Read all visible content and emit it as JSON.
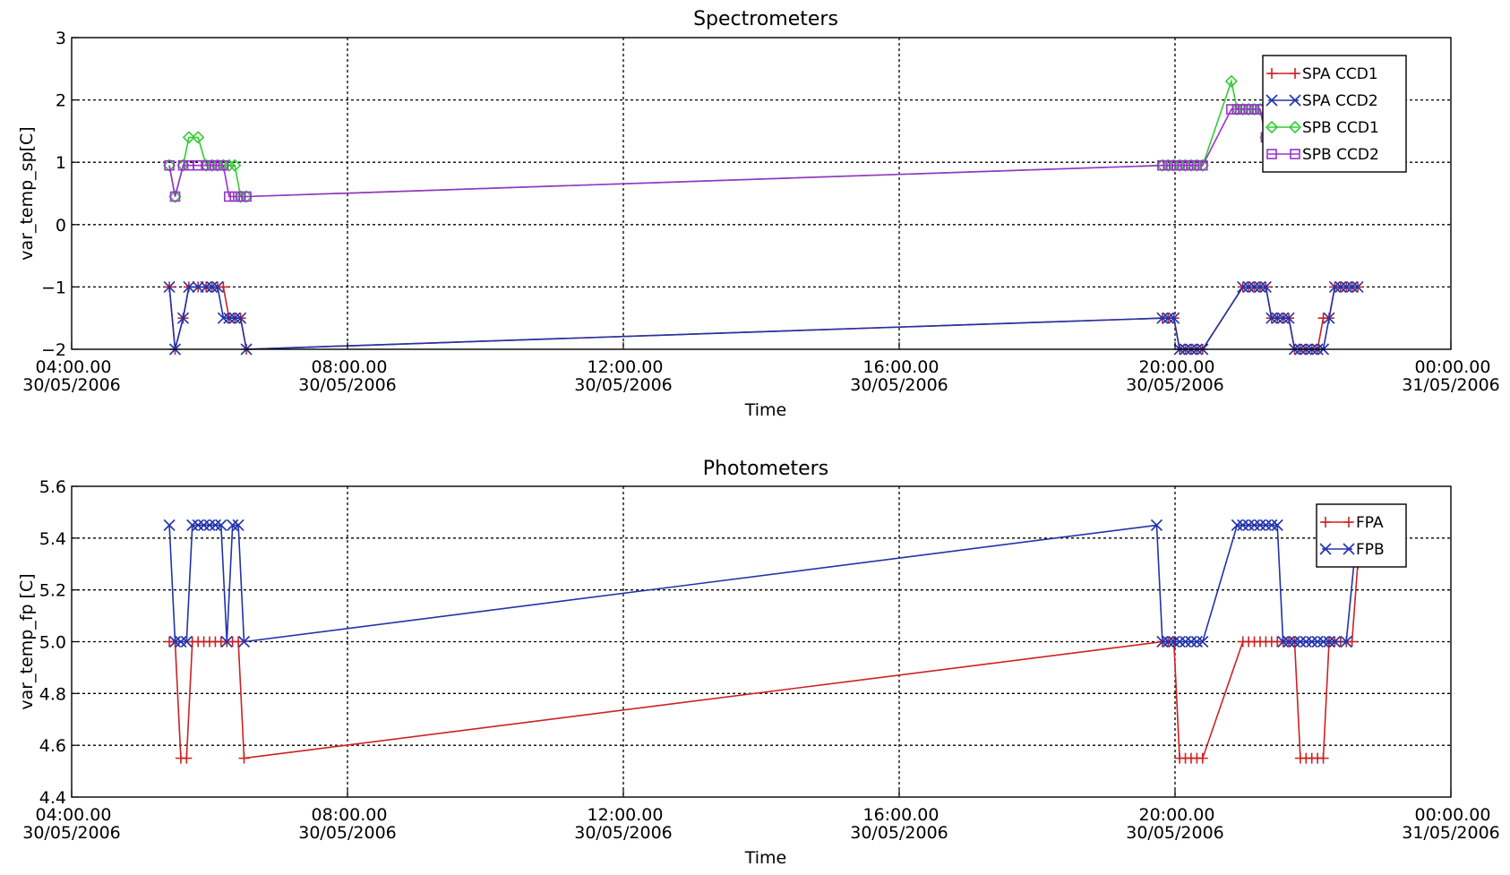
{
  "chart_data": [
    {
      "type": "line",
      "title": "Spectrometers",
      "xlabel": "Time",
      "ylabel": "var_temp_sp[C]",
      "xlim": [
        "2006-05-30 04:00",
        "2006-05-31 00:00"
      ],
      "ylim": [
        -2,
        3
      ],
      "yticks": [
        3,
        2,
        1,
        0,
        -1,
        -2
      ],
      "ytick_labels": [
        "3",
        "2",
        "1",
        "0",
        "−1",
        "−2"
      ],
      "xticks": [
        "2006-05-30 04:00",
        "2006-05-30 08:00",
        "2006-05-30 12:00",
        "2006-05-30 16:00",
        "2006-05-30 20:00",
        "2006-05-31 00:00"
      ],
      "xtick_labels": [
        [
          "04:00.00",
          "30/05/2006"
        ],
        [
          "08:00.00",
          "30/05/2006"
        ],
        [
          "12:00.00",
          "30/05/2006"
        ],
        [
          "16:00.00",
          "30/05/2006"
        ],
        [
          "20:00.00",
          "30/05/2006"
        ],
        [
          "00:00.00",
          "31/05/2006"
        ]
      ],
      "grid": true,
      "legend_position": "top-right",
      "series": [
        {
          "name": "SPA CCD1",
          "color": "#cc2222",
          "marker": "plus",
          "x": [
            "2006-05-30 05:25",
            "2006-05-30 05:30",
            "2006-05-30 05:37",
            "2006-05-30 05:42",
            "2006-05-30 05:50",
            "2006-05-30 05:57",
            "2006-05-30 06:02",
            "2006-05-30 06:07",
            "2006-05-30 06:12",
            "2006-05-30 06:17",
            "2006-05-30 06:22",
            "2006-05-30 06:27",
            "2006-05-30 06:32",
            "2006-05-30 19:49",
            "2006-05-30 19:54",
            "2006-05-30 19:59",
            "2006-05-30 20:04",
            "2006-05-30 20:09",
            "2006-05-30 20:14",
            "2006-05-30 20:19",
            "2006-05-30 20:24",
            "2006-05-30 20:59",
            "2006-05-30 21:04",
            "2006-05-30 21:09",
            "2006-05-30 21:14",
            "2006-05-30 21:19",
            "2006-05-30 21:24",
            "2006-05-30 21:29",
            "2006-05-30 21:34",
            "2006-05-30 21:39",
            "2006-05-30 21:44",
            "2006-05-30 21:49",
            "2006-05-30 21:54",
            "2006-05-30 21:59",
            "2006-05-30 22:04",
            "2006-05-30 22:09",
            "2006-05-30 22:14",
            "2006-05-30 22:19",
            "2006-05-30 22:24",
            "2006-05-30 22:29",
            "2006-05-30 22:34",
            "2006-05-30 22:39"
          ],
          "y": [
            -1.0,
            -2.0,
            -1.5,
            -1.0,
            -1.0,
            -1.0,
            -1.0,
            -1.0,
            -1.0,
            -1.5,
            -1.5,
            -1.5,
            -2.0,
            -1.5,
            -1.5,
            -1.5,
            -2.0,
            -2.0,
            -2.0,
            -2.0,
            -2.0,
            -1.0,
            -1.0,
            -1.0,
            -1.0,
            -1.0,
            -1.5,
            -1.5,
            -1.5,
            -1.5,
            -2.0,
            -2.0,
            -2.0,
            -2.0,
            -2.0,
            -1.5,
            -1.5,
            -1.0,
            -1.0,
            -1.0,
            -1.0,
            -1.0
          ]
        },
        {
          "name": "SPA CCD2",
          "color": "#2233aa",
          "marker": "x",
          "x": [
            "2006-05-30 05:25",
            "2006-05-30 05:30",
            "2006-05-30 05:37",
            "2006-05-30 05:42",
            "2006-05-30 05:50",
            "2006-05-30 05:57",
            "2006-05-30 06:02",
            "2006-05-30 06:07",
            "2006-05-30 06:12",
            "2006-05-30 06:17",
            "2006-05-30 06:22",
            "2006-05-30 06:27",
            "2006-05-30 06:32",
            "2006-05-30 19:49",
            "2006-05-30 19:54",
            "2006-05-30 19:59",
            "2006-05-30 20:04",
            "2006-05-30 20:09",
            "2006-05-30 20:14",
            "2006-05-30 20:19",
            "2006-05-30 20:24",
            "2006-05-30 20:59",
            "2006-05-30 21:04",
            "2006-05-30 21:09",
            "2006-05-30 21:14",
            "2006-05-30 21:19",
            "2006-05-30 21:24",
            "2006-05-30 21:29",
            "2006-05-30 21:34",
            "2006-05-30 21:39",
            "2006-05-30 21:44",
            "2006-05-30 21:49",
            "2006-05-30 21:54",
            "2006-05-30 21:59",
            "2006-05-30 22:04",
            "2006-05-30 22:09",
            "2006-05-30 22:14",
            "2006-05-30 22:19",
            "2006-05-30 22:24",
            "2006-05-30 22:29",
            "2006-05-30 22:34",
            "2006-05-30 22:39"
          ],
          "y": [
            -1.0,
            -2.0,
            -1.5,
            -1.0,
            -1.0,
            -1.0,
            -1.0,
            -1.0,
            -1.5,
            -1.5,
            -1.5,
            -1.5,
            -2.0,
            -1.5,
            -1.5,
            -1.5,
            -2.0,
            -2.0,
            -2.0,
            -2.0,
            -2.0,
            -1.0,
            -1.0,
            -1.0,
            -1.0,
            -1.0,
            -1.5,
            -1.5,
            -1.5,
            -1.5,
            -2.0,
            -2.0,
            -2.0,
            -2.0,
            -2.0,
            -2.0,
            -1.5,
            -1.0,
            -1.0,
            -1.0,
            -1.0,
            -1.0
          ]
        },
        {
          "name": "SPB CCD1",
          "color": "#33cc33",
          "marker": "diamond",
          "x": [
            "2006-05-30 05:25",
            "2006-05-30 05:30",
            "2006-05-30 05:37",
            "2006-05-30 05:42",
            "2006-05-30 05:50",
            "2006-05-30 05:57",
            "2006-05-30 06:02",
            "2006-05-30 06:07",
            "2006-05-30 06:12",
            "2006-05-30 06:17",
            "2006-05-30 06:22",
            "2006-05-30 06:27",
            "2006-05-30 06:32",
            "2006-05-30 19:49",
            "2006-05-30 19:54",
            "2006-05-30 19:59",
            "2006-05-30 20:04",
            "2006-05-30 20:09",
            "2006-05-30 20:14",
            "2006-05-30 20:19",
            "2006-05-30 20:24",
            "2006-05-30 20:49",
            "2006-05-30 20:54",
            "2006-05-30 20:59",
            "2006-05-30 21:04",
            "2006-05-30 21:09",
            "2006-05-30 21:14",
            "2006-05-30 21:19",
            "2006-05-30 21:24"
          ],
          "y": [
            0.95,
            0.45,
            0.95,
            1.4,
            1.4,
            0.95,
            0.95,
            0.95,
            0.95,
            0.95,
            0.95,
            0.45,
            0.45,
            0.95,
            0.95,
            0.95,
            0.95,
            0.95,
            0.95,
            0.95,
            0.95,
            2.3,
            1.85,
            1.85,
            1.85,
            1.85,
            1.85,
            1.4,
            0.95
          ]
        },
        {
          "name": "SPB CCD2",
          "color": "#9933cc",
          "marker": "square",
          "x": [
            "2006-05-30 05:25",
            "2006-05-30 05:30",
            "2006-05-30 05:37",
            "2006-05-30 05:42",
            "2006-05-30 05:50",
            "2006-05-30 05:57",
            "2006-05-30 06:02",
            "2006-05-30 06:07",
            "2006-05-30 06:12",
            "2006-05-30 06:17",
            "2006-05-30 06:22",
            "2006-05-30 06:27",
            "2006-05-30 06:32",
            "2006-05-30 19:49",
            "2006-05-30 19:54",
            "2006-05-30 19:59",
            "2006-05-30 20:04",
            "2006-05-30 20:09",
            "2006-05-30 20:14",
            "2006-05-30 20:19",
            "2006-05-30 20:24",
            "2006-05-30 20:49",
            "2006-05-30 20:54",
            "2006-05-30 20:59",
            "2006-05-30 21:04",
            "2006-05-30 21:09",
            "2006-05-30 21:14",
            "2006-05-30 21:19",
            "2006-05-30 21:24"
          ],
          "y": [
            0.95,
            0.45,
            0.95,
            0.95,
            0.95,
            0.95,
            0.95,
            0.95,
            0.95,
            0.45,
            0.45,
            0.45,
            0.45,
            0.95,
            0.95,
            0.95,
            0.95,
            0.95,
            0.95,
            0.95,
            0.95,
            1.85,
            1.85,
            1.85,
            1.85,
            1.85,
            1.85,
            1.4,
            0.95
          ]
        }
      ]
    },
    {
      "type": "line",
      "title": "Photometers",
      "xlabel": "Time",
      "ylabel": "var_temp_fp [C]",
      "xlim": [
        "2006-05-30 04:00",
        "2006-05-31 00:00"
      ],
      "ylim": [
        4.4,
        5.6
      ],
      "yticks": [
        5.6,
        5.4,
        5.2,
        5.0,
        4.8,
        4.6,
        4.4
      ],
      "ytick_labels": [
        "5.6",
        "5.4",
        "5.2",
        "5.0",
        "4.8",
        "4.6",
        "4.4"
      ],
      "xticks": [
        "2006-05-30 04:00",
        "2006-05-30 08:00",
        "2006-05-30 12:00",
        "2006-05-30 16:00",
        "2006-05-30 20:00",
        "2006-05-31 00:00"
      ],
      "xtick_labels": [
        [
          "04:00.00",
          "30/05/2006"
        ],
        [
          "08:00.00",
          "30/05/2006"
        ],
        [
          "12:00.00",
          "30/05/2006"
        ],
        [
          "16:00.00",
          "30/05/2006"
        ],
        [
          "20:00.00",
          "30/05/2006"
        ],
        [
          "00:00.00",
          "31/05/2006"
        ]
      ],
      "grid": true,
      "legend_position": "top-right",
      "series": [
        {
          "name": "FPA",
          "color": "#cc2222",
          "marker": "plus",
          "x": [
            "2006-05-30 05:25",
            "2006-05-30 05:30",
            "2006-05-30 05:35",
            "2006-05-30 05:40",
            "2006-05-30 05:45",
            "2006-05-30 05:50",
            "2006-05-30 05:55",
            "2006-05-30 06:00",
            "2006-05-30 06:05",
            "2006-05-30 06:10",
            "2006-05-30 06:15",
            "2006-05-30 06:20",
            "2006-05-30 06:25",
            "2006-05-30 06:30",
            "2006-05-30 19:49",
            "2006-05-30 19:54",
            "2006-05-30 19:59",
            "2006-05-30 20:04",
            "2006-05-30 20:09",
            "2006-05-30 20:14",
            "2006-05-30 20:19",
            "2006-05-30 20:24",
            "2006-05-30 20:59",
            "2006-05-30 21:04",
            "2006-05-30 21:09",
            "2006-05-30 21:14",
            "2006-05-30 21:19",
            "2006-05-30 21:24",
            "2006-05-30 21:29",
            "2006-05-30 21:34",
            "2006-05-30 21:39",
            "2006-05-30 21:44",
            "2006-05-30 21:49",
            "2006-05-30 21:54",
            "2006-05-30 21:59",
            "2006-05-30 22:04",
            "2006-05-30 22:09",
            "2006-05-30 22:14",
            "2006-05-30 22:19",
            "2006-05-30 22:24",
            "2006-05-30 22:29",
            "2006-05-30 22:34",
            "2006-05-30 22:39",
            "2006-05-30 22:44"
          ],
          "y": [
            5.0,
            5.0,
            4.55,
            4.55,
            5.0,
            5.0,
            5.0,
            5.0,
            5.0,
            5.0,
            5.0,
            5.0,
            5.0,
            4.55,
            5.0,
            5.0,
            5.0,
            4.55,
            4.55,
            4.55,
            4.55,
            4.55,
            5.0,
            5.0,
            5.0,
            5.0,
            5.0,
            5.0,
            5.0,
            5.0,
            5.0,
            5.0,
            4.55,
            4.55,
            4.55,
            4.55,
            4.55,
            5.0,
            5.0,
            5.0,
            5.0,
            5.0,
            5.3,
            5.45
          ]
        },
        {
          "name": "FPB",
          "color": "#2233aa",
          "marker": "x",
          "x": [
            "2006-05-30 05:25",
            "2006-05-30 05:30",
            "2006-05-30 05:35",
            "2006-05-30 05:40",
            "2006-05-30 05:45",
            "2006-05-30 05:50",
            "2006-05-30 05:55",
            "2006-05-30 06:00",
            "2006-05-30 06:05",
            "2006-05-30 06:10",
            "2006-05-30 06:15",
            "2006-05-30 06:20",
            "2006-05-30 06:25",
            "2006-05-30 06:30",
            "2006-05-30 19:44",
            "2006-05-30 19:49",
            "2006-05-30 19:54",
            "2006-05-30 19:59",
            "2006-05-30 20:04",
            "2006-05-30 20:09",
            "2006-05-30 20:14",
            "2006-05-30 20:19",
            "2006-05-30 20:24",
            "2006-05-30 20:54",
            "2006-05-30 20:59",
            "2006-05-30 21:04",
            "2006-05-30 21:09",
            "2006-05-30 21:14",
            "2006-05-30 21:19",
            "2006-05-30 21:24",
            "2006-05-30 21:29",
            "2006-05-30 21:34",
            "2006-05-30 21:39",
            "2006-05-30 21:44",
            "2006-05-30 21:49",
            "2006-05-30 21:54",
            "2006-05-30 21:59",
            "2006-05-30 22:04",
            "2006-05-30 22:09",
            "2006-05-30 22:14",
            "2006-05-30 22:19",
            "2006-05-30 22:29",
            "2006-05-30 22:39"
          ],
          "y": [
            5.45,
            5.0,
            5.0,
            5.0,
            5.45,
            5.45,
            5.45,
            5.45,
            5.45,
            5.45,
            5.0,
            5.45,
            5.45,
            5.0,
            5.45,
            5.0,
            5.0,
            5.0,
            5.0,
            5.0,
            5.0,
            5.0,
            5.0,
            5.45,
            5.45,
            5.45,
            5.45,
            5.45,
            5.45,
            5.45,
            5.45,
            5.0,
            5.0,
            5.0,
            5.0,
            5.0,
            5.0,
            5.0,
            5.0,
            5.0,
            5.0,
            5.0,
            5.45
          ]
        }
      ]
    }
  ]
}
